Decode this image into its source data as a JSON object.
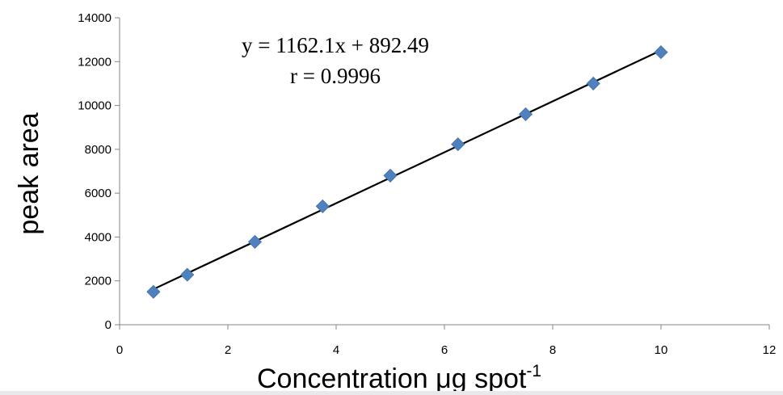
{
  "chart_data": {
    "type": "scatter",
    "title": "",
    "xlabel": "Concentration μg spot",
    "xlabel_superscript": "-1",
    "ylabel": "peak area",
    "xlim": [
      0,
      12
    ],
    "ylim": [
      0,
      14000
    ],
    "x_ticks": [
      "0",
      "2",
      "4",
      "6",
      "8",
      "10",
      "12"
    ],
    "y_ticks": [
      "0",
      "2000",
      "4000",
      "6000",
      "8000",
      "10000",
      "12000",
      "14000"
    ],
    "grid": false,
    "legend": "none",
    "marker_color": "#4f81bd",
    "trendline_color": "#000000",
    "series": [
      {
        "x": [
          0.625,
          1.25,
          2.5,
          3.75,
          5.0,
          6.25,
          7.5,
          8.75,
          10.0
        ],
        "y": [
          1500,
          2280,
          3780,
          5400,
          6800,
          8230,
          9600,
          11000,
          12430
        ]
      }
    ],
    "trendline": {
      "slope": 1162.1,
      "intercept": 892.49,
      "x_range": [
        0.625,
        10.0
      ]
    },
    "annotations": {
      "equation": "y = 1162.1x + 892.49",
      "r_value": "r = 0.9996"
    }
  }
}
